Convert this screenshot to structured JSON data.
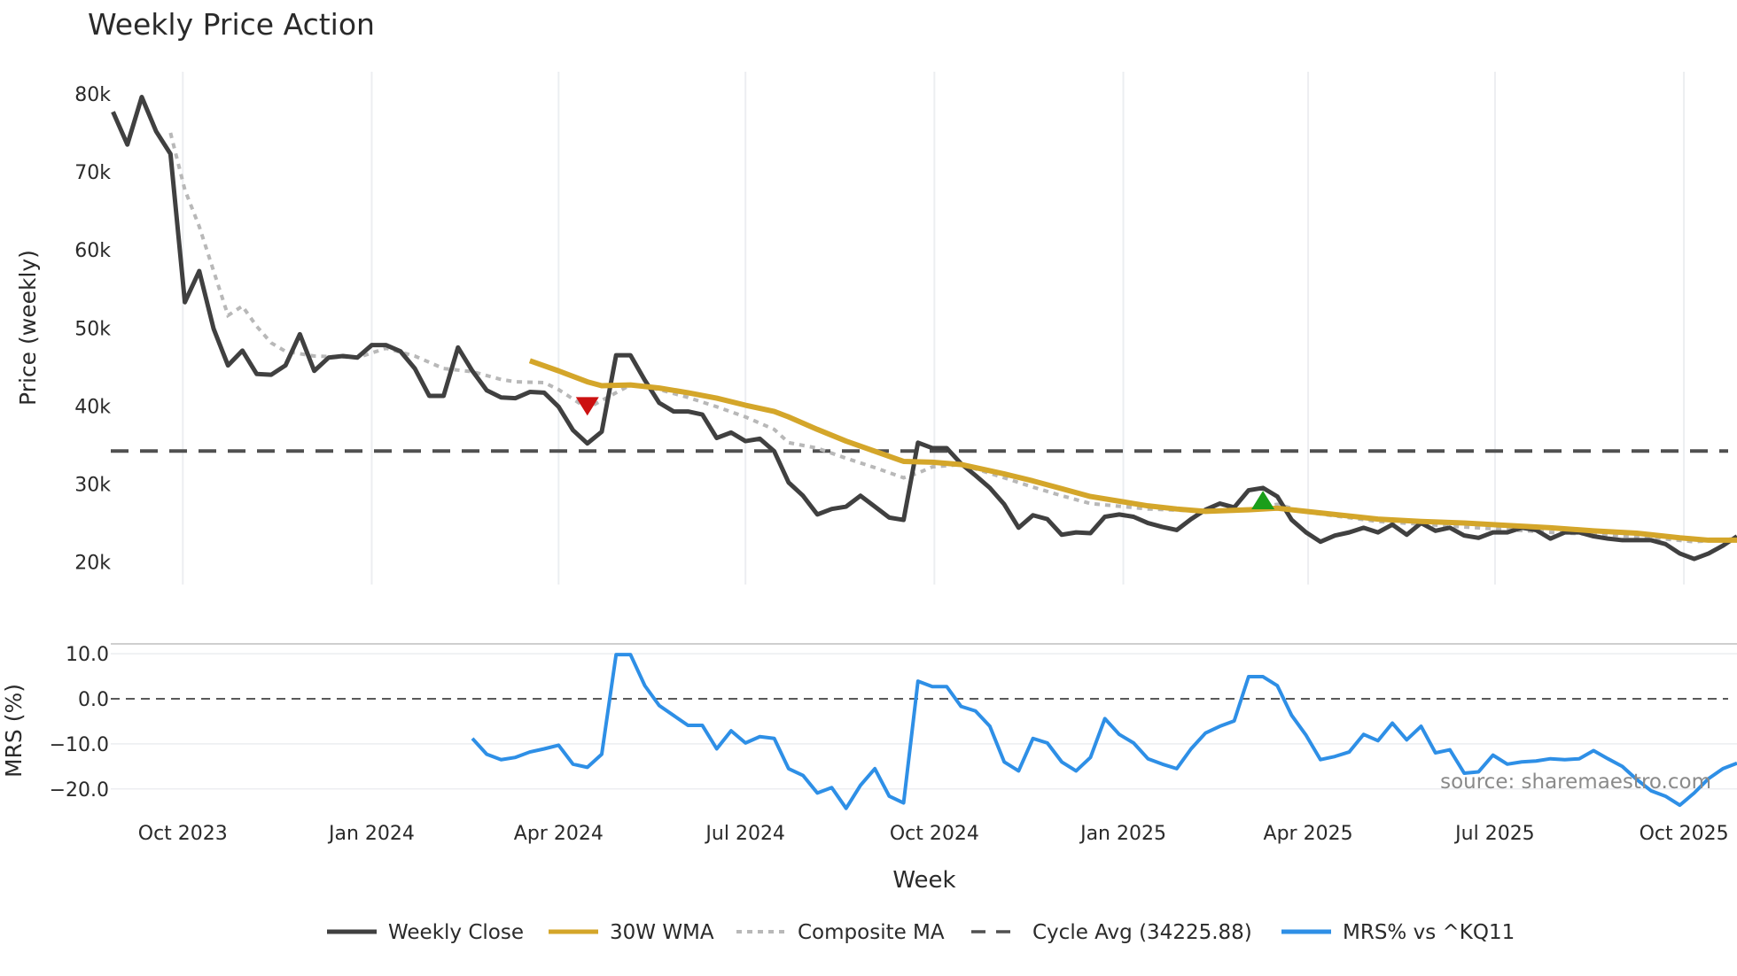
{
  "chart_data": {
    "type": "line",
    "title": "Weekly Price Action",
    "xlabel": "Week",
    "ylabel": "Price (weekly)",
    "ylabel_bottom": "MRS (%)",
    "start_date": "2023-08-28",
    "x_step_days": 7,
    "ylim": [
      17500,
      82000
    ],
    "ylim_bottom": [
      -26,
      12
    ],
    "y_ticks": [
      {
        "v": 80000,
        "label": "80k"
      },
      {
        "v": 70000,
        "label": "70k"
      },
      {
        "v": 60000,
        "label": "60k"
      },
      {
        "v": 50000,
        "label": "50k"
      },
      {
        "v": 40000,
        "label": "40k"
      },
      {
        "v": 30000,
        "label": "30k"
      },
      {
        "v": 20000,
        "label": "20k"
      }
    ],
    "y_ticks_bottom": [
      {
        "v": 10,
        "label": "10.0"
      },
      {
        "v": 0,
        "label": "0.0"
      },
      {
        "v": -10,
        "label": "−10.0"
      },
      {
        "v": -20,
        "label": "−20.0"
      }
    ],
    "x_ticks": [
      {
        "date": "2023-10-01",
        "label": "Oct 2023"
      },
      {
        "date": "2024-01-01",
        "label": "Jan 2024"
      },
      {
        "date": "2024-04-01",
        "label": "Apr 2024"
      },
      {
        "date": "2024-07-01",
        "label": "Jul 2024"
      },
      {
        "date": "2024-10-01",
        "label": "Oct 2024"
      },
      {
        "date": "2025-01-01",
        "label": "Jan 2025"
      },
      {
        "date": "2025-04-01",
        "label": "Apr 2025"
      },
      {
        "date": "2025-07-01",
        "label": "Jul 2025"
      },
      {
        "date": "2025-10-01",
        "label": "Oct 2025"
      }
    ],
    "series": [
      {
        "name": "Weekly Close",
        "color": "#404040",
        "style": "solid",
        "start_week": 0,
        "values": [
          77700,
          73500,
          79600,
          75200,
          72300,
          53300,
          57300,
          49900,
          45200,
          47100,
          44100,
          44000,
          45200,
          49200,
          44500,
          46200,
          46400,
          46200,
          47800,
          47800,
          47000,
          44800,
          41300,
          41300,
          47500,
          44500,
          42000,
          41100,
          41000,
          41800,
          41700,
          39900,
          36900,
          35200,
          36700,
          46500,
          46500,
          43300,
          40400,
          39300,
          39300,
          38900,
          35900,
          36600,
          35500,
          35800,
          34200,
          30200,
          28500,
          26100,
          26800,
          27100,
          28500,
          27100,
          25700,
          25400,
          35300,
          34600,
          34600,
          32600,
          31100,
          29500,
          27400,
          24400,
          26000,
          25500,
          23500,
          23800,
          23700,
          25800,
          26100,
          25800,
          25000,
          24500,
          24100,
          25500,
          26700,
          27500,
          27000,
          29200,
          29500,
          28400,
          25400,
          23800,
          22600,
          23400,
          23800,
          24400,
          23800,
          24800,
          23500,
          25000,
          24000,
          24400,
          23400,
          23100,
          23800,
          23800,
          24400,
          24100,
          23000,
          23800,
          23800,
          23300,
          23000,
          22800,
          22800,
          22800,
          22300,
          21100,
          20400,
          21100,
          22100,
          23300
        ]
      },
      {
        "name": "30W WMA",
        "color": "#D4A62A",
        "style": "solid",
        "points": [
          [
            29,
            45800
          ],
          [
            31,
            44500
          ],
          [
            33,
            43100
          ],
          [
            34,
            42600
          ],
          [
            36,
            42700
          ],
          [
            38,
            42300
          ],
          [
            40,
            41700
          ],
          [
            42,
            41000
          ],
          [
            44,
            40100
          ],
          [
            46,
            39300
          ],
          [
            47,
            38600
          ],
          [
            49,
            37000
          ],
          [
            51,
            35500
          ],
          [
            53,
            34200
          ],
          [
            55,
            32900
          ],
          [
            57,
            32800
          ],
          [
            59,
            32500
          ],
          [
            62,
            31300
          ],
          [
            64,
            30400
          ],
          [
            66,
            29400
          ],
          [
            68,
            28400
          ],
          [
            70,
            27800
          ],
          [
            72,
            27200
          ],
          [
            74,
            26800
          ],
          [
            76,
            26500
          ],
          [
            79,
            26700
          ],
          [
            81,
            26900
          ],
          [
            83,
            26500
          ],
          [
            85,
            26100
          ],
          [
            88,
            25500
          ],
          [
            91,
            25200
          ],
          [
            94,
            25000
          ],
          [
            97,
            24700
          ],
          [
            100,
            24400
          ],
          [
            103,
            24000
          ],
          [
            106,
            23700
          ],
          [
            109,
            23100
          ],
          [
            111,
            22800
          ],
          [
            113,
            22800
          ]
        ]
      },
      {
        "name": "Composite MA",
        "color": "#B8B8B8",
        "style": "dotted",
        "points": [
          [
            4,
            75000
          ],
          [
            5,
            67700
          ],
          [
            6,
            63000
          ],
          [
            7,
            57300
          ],
          [
            8,
            51600
          ],
          [
            9,
            52800
          ],
          [
            10,
            50200
          ],
          [
            11,
            48100
          ],
          [
            12,
            47000
          ],
          [
            14,
            46400
          ],
          [
            17,
            46200
          ],
          [
            19,
            47400
          ],
          [
            21,
            46400
          ],
          [
            23,
            44800
          ],
          [
            25,
            44400
          ],
          [
            27,
            43400
          ],
          [
            28,
            43100
          ],
          [
            30,
            43000
          ],
          [
            31,
            42100
          ],
          [
            33,
            39700
          ],
          [
            35,
            41700
          ],
          [
            36,
            42700
          ],
          [
            38,
            42100
          ],
          [
            40,
            41100
          ],
          [
            42,
            39900
          ],
          [
            44,
            38600
          ],
          [
            46,
            37000
          ],
          [
            47,
            35300
          ],
          [
            49,
            34600
          ],
          [
            51,
            33300
          ],
          [
            53,
            32100
          ],
          [
            55,
            30800
          ],
          [
            56,
            31400
          ],
          [
            57,
            32200
          ],
          [
            59,
            32500
          ],
          [
            62,
            30800
          ],
          [
            64,
            29600
          ],
          [
            66,
            28500
          ],
          [
            68,
            27500
          ],
          [
            72,
            26800
          ],
          [
            76,
            26500
          ],
          [
            79,
            26800
          ],
          [
            81,
            27400
          ],
          [
            83,
            26400
          ],
          [
            88,
            25200
          ],
          [
            94,
            24500
          ],
          [
            100,
            23800
          ],
          [
            106,
            23300
          ],
          [
            110,
            22600
          ],
          [
            113,
            23000
          ]
        ]
      },
      {
        "name": "Cycle Avg (34225.88)",
        "color": "#505050",
        "style": "dashed",
        "value": 34225.88
      },
      {
        "name": "MRS% vs ^KQ11",
        "color": "#2E8FE6",
        "style": "solid",
        "panel": "bottom",
        "start_week": 25,
        "values": [
          -8.8,
          -12.3,
          -13.5,
          -13.0,
          -11.8,
          -11.1,
          -10.3,
          -14.5,
          -15.2,
          -12.3,
          9.8,
          9.8,
          2.9,
          -1.5,
          -3.7,
          -5.9,
          -5.9,
          -11.1,
          -7.1,
          -9.8,
          -8.4,
          -8.8,
          -15.5,
          -17.0,
          -20.9,
          -19.7,
          -24.3,
          -19.2,
          -15.5,
          -21.6,
          -23.1,
          3.9,
          2.7,
          2.7,
          -1.7,
          -2.7,
          -6.1,
          -14.0,
          -16.0,
          -8.8,
          -9.8,
          -14.0,
          -16.0,
          -13.0,
          -4.4,
          -7.9,
          -9.8,
          -13.3,
          -14.5,
          -15.5,
          -11.1,
          -7.6,
          -6.1,
          -4.9,
          4.9,
          4.9,
          2.9,
          -3.7,
          -8.1,
          -13.5,
          -12.8,
          -11.8,
          -7.9,
          -9.3,
          -5.4,
          -9.1,
          -6.1,
          -12.0,
          -11.3,
          -16.5,
          -16.2,
          -12.5,
          -14.5,
          -14.0,
          -13.8,
          -13.3,
          -13.5,
          -13.3,
          -11.5,
          -13.3,
          -15.0,
          -17.9,
          -20.4,
          -21.6,
          -23.6,
          -20.9,
          -17.7,
          -15.5,
          -14.3
        ]
      }
    ],
    "markers": [
      {
        "type": "sell",
        "shape": "triangle-down",
        "color": "#CC1111",
        "week": 33,
        "value": 40100
      },
      {
        "type": "buy",
        "shape": "triangle-up",
        "color": "#1A9E1A",
        "week": 80,
        "value": 27800
      }
    ],
    "grid": {
      "vertical": true,
      "horizontal_bottom": true
    },
    "legend_position": "bottom-center",
    "annotation": "source: sharemaestro.com"
  }
}
